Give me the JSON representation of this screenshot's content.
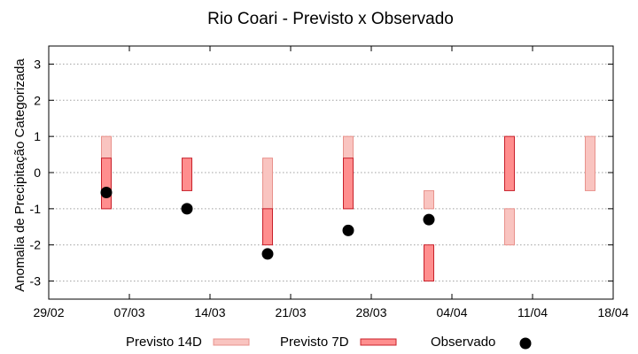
{
  "chart_data": {
    "type": "box-range",
    "title": "Rio Coari - Previsto x Observado",
    "xlabel": "",
    "ylabel": "Anomalia de Precipitação Categorizada",
    "x_ticks": [
      "29/02",
      "07/03",
      "14/03",
      "21/03",
      "28/03",
      "04/04",
      "11/04",
      "18/04"
    ],
    "y_ticks": [
      "-3",
      "-2",
      "-1",
      "0",
      "1",
      "2",
      "3"
    ],
    "ylim": [
      -3.5,
      3.5
    ],
    "xlim_days": [
      0,
      49
    ],
    "grid": true,
    "legend_position": "bottom",
    "series": [
      {
        "name": "Previsto 14D",
        "fill": "#f9c4c0",
        "stroke": "#e8928c",
        "bars": [
          {
            "x": "2024-03-05",
            "low": -1,
            "high": 1
          },
          {
            "x": "2024-03-19",
            "low": -1,
            "high": 0.4
          },
          {
            "x": "2024-03-26",
            "low": -1,
            "high": 1
          },
          {
            "x": "2024-04-02",
            "low": -1,
            "high": -0.5
          },
          {
            "x": "2024-04-09",
            "low": -2,
            "high": -1
          },
          {
            "x": "2024-04-16",
            "low": -0.5,
            "high": 1
          }
        ]
      },
      {
        "name": "Previsto 7D",
        "fill": "#ff8e8e",
        "stroke": "#c8202a",
        "bars": [
          {
            "x": "2024-03-05",
            "low": -1,
            "high": 0.4
          },
          {
            "x": "2024-03-12",
            "low": -0.5,
            "high": 0.4
          },
          {
            "x": "2024-03-19",
            "low": -2,
            "high": -1
          },
          {
            "x": "2024-03-26",
            "low": -1,
            "high": 0.4
          },
          {
            "x": "2024-04-02",
            "low": -3,
            "high": -2
          },
          {
            "x": "2024-04-09",
            "low": -0.5,
            "high": 1
          }
        ]
      },
      {
        "name": "Observado",
        "color": "#000000",
        "points": [
          {
            "x": "2024-03-05",
            "y": -0.55
          },
          {
            "x": "2024-03-12",
            "y": -1.0
          },
          {
            "x": "2024-03-19",
            "y": -2.25
          },
          {
            "x": "2024-03-26",
            "y": -1.6
          },
          {
            "x": "2024-04-02",
            "y": -1.3
          }
        ]
      }
    ]
  }
}
